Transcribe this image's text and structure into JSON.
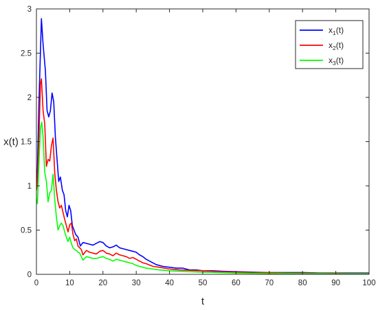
{
  "chart_data": {
    "type": "line",
    "xlabel": "t",
    "ylabel": "x(t)",
    "xlim": [
      0,
      100
    ],
    "ylim": [
      0,
      3
    ],
    "xticks": [
      0,
      10,
      20,
      30,
      40,
      50,
      60,
      70,
      80,
      90,
      100
    ],
    "yticks": [
      0,
      0.5,
      1,
      1.5,
      2,
      2.5,
      3
    ],
    "ytick_labels": [
      "0",
      "0.5",
      "1",
      "1.5",
      "2",
      "2.5",
      "3"
    ],
    "grid": false,
    "legend_position": "top-right",
    "series": [
      {
        "name": "x₁(t)",
        "legend_main": "x",
        "legend_sub": "1",
        "legend_tail": "(t)",
        "color": "#0000ff",
        "x": [
          0,
          0.3,
          0.8,
          1.5,
          2.0,
          2.7,
          3.2,
          3.7,
          4.2,
          4.7,
          5.2,
          5.7,
          6.2,
          6.7,
          7.2,
          7.8,
          8.3,
          8.8,
          9.3,
          9.8,
          10.3,
          10.8,
          11.3,
          11.8,
          12.5,
          13.2,
          14,
          15,
          16,
          17,
          18,
          19,
          20,
          21,
          22,
          23,
          24,
          25,
          26,
          27,
          28,
          29,
          30,
          31,
          32,
          33,
          34,
          36,
          38,
          40,
          42,
          44,
          46,
          48,
          50,
          53,
          56,
          60,
          65,
          70,
          75,
          80,
          85,
          90,
          95,
          100
        ],
        "y": [
          0.97,
          1.2,
          2.0,
          2.89,
          2.6,
          2.3,
          1.85,
          1.78,
          1.85,
          2.05,
          1.95,
          1.55,
          1.3,
          1.05,
          1.1,
          0.95,
          0.9,
          0.72,
          0.65,
          0.78,
          0.72,
          0.55,
          0.5,
          0.45,
          0.42,
          0.32,
          0.36,
          0.35,
          0.34,
          0.33,
          0.35,
          0.37,
          0.36,
          0.32,
          0.3,
          0.31,
          0.33,
          0.3,
          0.29,
          0.28,
          0.27,
          0.26,
          0.25,
          0.22,
          0.2,
          0.17,
          0.15,
          0.11,
          0.09,
          0.08,
          0.07,
          0.07,
          0.05,
          0.05,
          0.04,
          0.04,
          0.035,
          0.03,
          0.025,
          0.02,
          0.02,
          0.02,
          0.015,
          0.015,
          0.015,
          0.015
        ]
      },
      {
        "name": "x₂(t)",
        "legend_main": "x",
        "legend_sub": "2",
        "legend_tail": "(t)",
        "color": "#ff0000",
        "x": [
          0,
          0.3,
          0.8,
          1.2,
          1.5,
          2.0,
          2.5,
          3.0,
          3.5,
          4.0,
          4.5,
          5.0,
          5.5,
          6.0,
          6.5,
          7.0,
          7.5,
          8.0,
          8.5,
          9.0,
          9.5,
          10.0,
          10.5,
          11.0,
          11.5,
          12.0,
          12.5,
          13.0,
          13.5,
          14,
          15,
          16,
          17,
          18,
          19,
          20,
          21,
          22,
          23,
          24,
          25,
          26,
          27,
          28,
          29,
          30,
          31,
          32,
          33,
          35,
          37,
          40,
          43,
          46,
          50,
          55,
          60,
          65,
          70,
          75,
          80,
          85,
          90,
          95,
          100
        ],
        "y": [
          0.95,
          1.05,
          1.6,
          2.15,
          2.21,
          1.85,
          1.7,
          1.22,
          1.3,
          1.28,
          1.45,
          1.54,
          1.15,
          0.95,
          0.82,
          0.75,
          0.78,
          0.7,
          0.62,
          0.55,
          0.48,
          0.56,
          0.58,
          0.45,
          0.38,
          0.4,
          0.32,
          0.3,
          0.28,
          0.22,
          0.27,
          0.25,
          0.24,
          0.23,
          0.26,
          0.27,
          0.24,
          0.23,
          0.21,
          0.24,
          0.22,
          0.21,
          0.2,
          0.18,
          0.19,
          0.17,
          0.15,
          0.13,
          0.12,
          0.09,
          0.08,
          0.06,
          0.05,
          0.045,
          0.04,
          0.03,
          0.025,
          0.02,
          0.02,
          0.015,
          0.015,
          0.012,
          0.012,
          0.01,
          0.01
        ]
      },
      {
        "name": "x₃(t)",
        "legend_main": "x",
        "legend_sub": "3",
        "legend_tail": "(t)",
        "color": "#00ff00",
        "x": [
          0,
          0.3,
          0.8,
          1.2,
          1.6,
          2.0,
          2.5,
          3.0,
          3.5,
          4.0,
          4.5,
          5.0,
          5.5,
          6.0,
          6.5,
          7.0,
          7.5,
          8.0,
          8.5,
          9.0,
          9.5,
          10.0,
          10.5,
          11.0,
          11.5,
          12.0,
          12.5,
          13.0,
          13.5,
          14,
          15,
          16,
          17,
          18,
          19,
          20,
          21,
          22,
          23,
          24,
          25,
          26,
          27,
          28,
          29,
          30,
          31,
          32,
          33,
          35,
          37,
          40,
          43,
          46,
          50,
          55,
          60,
          65,
          70,
          75,
          80,
          85,
          90,
          95,
          100
        ],
        "y": [
          0.85,
          0.8,
          1.3,
          1.65,
          1.72,
          1.55,
          1.15,
          1.05,
          0.82,
          0.92,
          0.95,
          1.13,
          0.85,
          0.65,
          0.5,
          0.55,
          0.58,
          0.55,
          0.48,
          0.42,
          0.37,
          0.42,
          0.35,
          0.3,
          0.28,
          0.27,
          0.25,
          0.24,
          0.2,
          0.16,
          0.2,
          0.19,
          0.18,
          0.18,
          0.19,
          0.2,
          0.18,
          0.17,
          0.15,
          0.17,
          0.16,
          0.15,
          0.14,
          0.13,
          0.12,
          0.1,
          0.09,
          0.08,
          0.07,
          0.06,
          0.05,
          0.04,
          0.035,
          0.03,
          0.025,
          0.02,
          0.015,
          0.012,
          0.01,
          0.01,
          0.008,
          0.008,
          0.006,
          0.006,
          0.006
        ]
      }
    ]
  }
}
